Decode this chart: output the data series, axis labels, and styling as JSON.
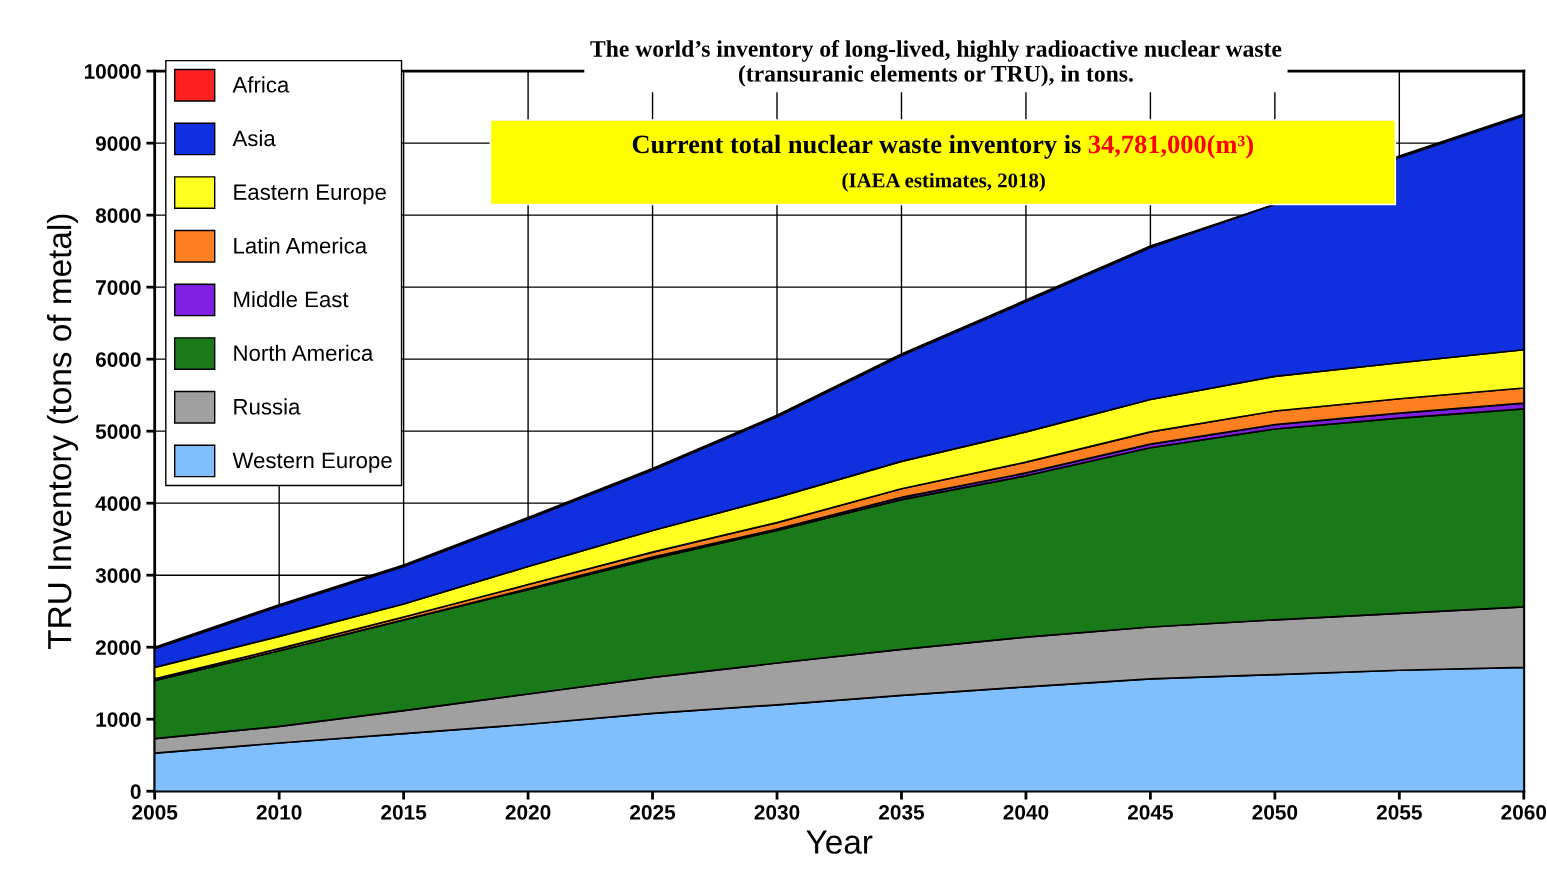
{
  "chart_data": {
    "type": "area",
    "stacked": true,
    "title": "The world’s inventory of long-lived, highly radioactive nuclear waste\n(transuranic elements or TRU), in tons.",
    "annotations": [
      "Current total nuclear waste inventory is",
      "34,781,000(m³)",
      "(IAEA estimates, 2018)"
    ],
    "xlabel": "Year",
    "ylabel": "TRU Inventory (tons of metal)",
    "x": [
      2005,
      2010,
      2015,
      2020,
      2025,
      2030,
      2035,
      2040,
      2045,
      2050,
      2055,
      2060
    ],
    "series": [
      {
        "name": "Western Europe",
        "color": "#80bfff",
        "values": [
          530,
          670,
          800,
          930,
          1080,
          1200,
          1330,
          1450,
          1560,
          1620,
          1680,
          1720
        ]
      },
      {
        "name": "Russia",
        "color": "#a0a0a0",
        "values": [
          200,
          230,
          320,
          420,
          500,
          580,
          640,
          690,
          720,
          760,
          790,
          840
        ]
      },
      {
        "name": "North America",
        "color": "#1a7a1a",
        "values": [
          810,
          1050,
          1260,
          1450,
          1650,
          1840,
          2080,
          2240,
          2490,
          2650,
          2710,
          2750
        ]
      },
      {
        "name": "Middle East",
        "color": "#7f1fe0",
        "values": [
          0,
          0,
          0,
          10,
          20,
          20,
          30,
          40,
          50,
          60,
          70,
          80
        ]
      },
      {
        "name": "Latin America",
        "color": "#ff8020",
        "values": [
          20,
          30,
          40,
          60,
          70,
          90,
          120,
          150,
          170,
          190,
          200,
          210
        ]
      },
      {
        "name": "Eastern Europe",
        "color": "#ffff20",
        "values": [
          160,
          170,
          180,
          250,
          300,
          350,
          380,
          420,
          450,
          480,
          500,
          530
        ]
      },
      {
        "name": "Asia",
        "color": "#1030e0",
        "values": [
          260,
          420,
          520,
          660,
          840,
          1120,
          1470,
          1810,
          2110,
          2390,
          2850,
          3250
        ]
      },
      {
        "name": "Africa",
        "color": "#ff2020",
        "values": [
          20,
          20,
          20,
          20,
          20,
          20,
          20,
          20,
          20,
          null,
          20,
          20
        ]
      }
    ],
    "xlim": [
      2005,
      2060
    ],
    "xticks": [
      2005,
      2010,
      2015,
      2020,
      2025,
      2030,
      2035,
      2040,
      2045,
      2050,
      2055,
      2060
    ],
    "ylim": [
      0,
      10000
    ],
    "yticks": [
      0,
      1000,
      2000,
      3000,
      4000,
      5000,
      6000,
      7000,
      8000,
      9000,
      10000
    ],
    "grid": true,
    "legend": "top left"
  }
}
